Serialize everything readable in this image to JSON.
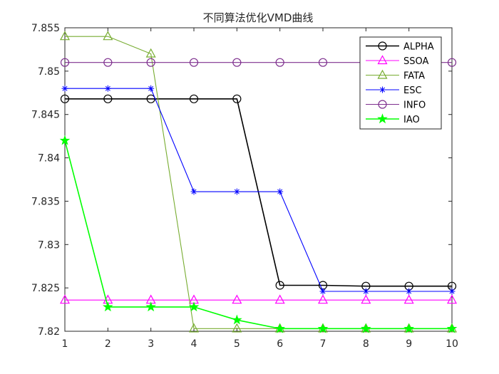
{
  "chart_data": {
    "type": "line",
    "title": "不同算法优化VMD曲线",
    "xlabel": "",
    "ylabel": "",
    "x": [
      1,
      2,
      3,
      4,
      5,
      6,
      7,
      8,
      9,
      10
    ],
    "xlim": [
      1,
      10
    ],
    "ylim": [
      7.82,
      7.855
    ],
    "xticks": [
      "1",
      "2",
      "3",
      "4",
      "5",
      "6",
      "7",
      "8",
      "9",
      "10"
    ],
    "yticks": [
      "7.82",
      "7.825",
      "7.83",
      "7.835",
      "7.84",
      "7.845",
      "7.85",
      "7.855"
    ],
    "grid": false,
    "legend_position": "top-right",
    "series": [
      {
        "name": "ALPHA",
        "color": "#000000",
        "marker": "circle",
        "values": [
          7.8468,
          7.8468,
          7.8468,
          7.8468,
          7.8468,
          7.8253,
          7.8253,
          7.8252,
          7.8252,
          7.8252
        ]
      },
      {
        "name": "SSOA",
        "color": "#ff00ff",
        "marker": "triangle",
        "values": [
          7.8236,
          7.8236,
          7.8236,
          7.8236,
          7.8236,
          7.8236,
          7.8236,
          7.8236,
          7.8236,
          7.8236
        ]
      },
      {
        "name": "FATA",
        "color": "#77ac30",
        "marker": "triangle",
        "values": [
          7.854,
          7.854,
          7.852,
          7.8203,
          7.8203,
          7.8203,
          7.8203,
          7.8203,
          7.8203,
          7.8203
        ]
      },
      {
        "name": "ESC",
        "color": "#0000ff",
        "marker": "asterisk",
        "values": [
          7.848,
          7.848,
          7.848,
          7.8361,
          7.8361,
          7.8361,
          7.8246,
          7.8246,
          7.8246,
          7.8246
        ]
      },
      {
        "name": "INFO",
        "color": "#7e2f8e",
        "marker": "circle",
        "values": [
          7.851,
          7.851,
          7.851,
          7.851,
          7.851,
          7.851,
          7.851,
          7.851,
          7.851,
          7.851
        ]
      },
      {
        "name": "IAO",
        "color": "#00ff00",
        "marker": "star",
        "values": [
          7.842,
          7.8228,
          7.8228,
          7.8228,
          7.8213,
          7.8203,
          7.8203,
          7.8203,
          7.8203,
          7.8203
        ]
      }
    ]
  }
}
